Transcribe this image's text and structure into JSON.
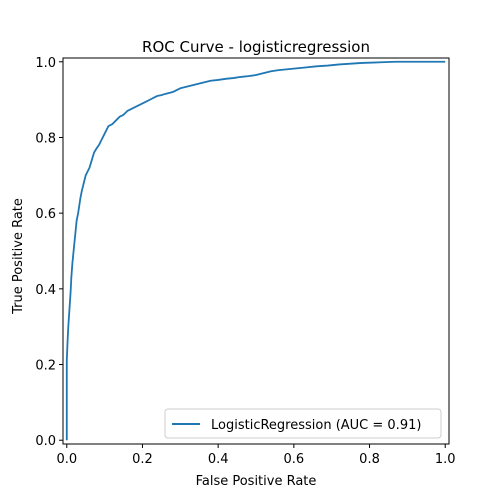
{
  "chart_data": {
    "type": "line",
    "title": "ROC Curve - logisticregression",
    "xlabel": "False Positive Rate",
    "ylabel": "True Positive Rate",
    "xlim": [
      -0.01,
      1.01
    ],
    "ylim": [
      -0.01,
      1.01
    ],
    "xticks": [
      0.0,
      0.2,
      0.4,
      0.6,
      0.8,
      1.0
    ],
    "xtick_labels": [
      "0.0",
      "0.2",
      "0.4",
      "0.6",
      "0.8",
      "1.0"
    ],
    "yticks": [
      0.0,
      0.2,
      0.4,
      0.6,
      0.8,
      1.0
    ],
    "ytick_labels": [
      "0.0",
      "0.2",
      "0.4",
      "0.6",
      "0.8",
      "1.0"
    ],
    "grid": false,
    "legend_position": "bottom-right",
    "series": [
      {
        "name": "LogisticRegression (AUC = 0.91)",
        "color": "#1f77b4",
        "x": [
          0.0,
          0.0,
          0.002,
          0.004,
          0.006,
          0.008,
          0.01,
          0.012,
          0.015,
          0.018,
          0.02,
          0.023,
          0.026,
          0.03,
          0.033,
          0.036,
          0.04,
          0.045,
          0.05,
          0.055,
          0.06,
          0.066,
          0.072,
          0.078,
          0.085,
          0.09,
          0.1,
          0.11,
          0.12,
          0.13,
          0.14,
          0.15,
          0.16,
          0.17,
          0.18,
          0.19,
          0.2,
          0.21,
          0.22,
          0.23,
          0.24,
          0.25,
          0.26,
          0.28,
          0.3,
          0.32,
          0.34,
          0.36,
          0.38,
          0.4,
          0.42,
          0.44,
          0.46,
          0.48,
          0.5,
          0.52,
          0.54,
          0.56,
          0.58,
          0.6,
          0.63,
          0.66,
          0.69,
          0.72,
          0.75,
          0.78,
          0.81,
          0.84,
          0.87,
          0.9,
          0.95,
          1.0
        ],
        "y": [
          0.0,
          0.21,
          0.26,
          0.3,
          0.33,
          0.36,
          0.39,
          0.43,
          0.47,
          0.5,
          0.52,
          0.55,
          0.58,
          0.6,
          0.62,
          0.64,
          0.66,
          0.68,
          0.7,
          0.71,
          0.72,
          0.74,
          0.76,
          0.77,
          0.78,
          0.79,
          0.81,
          0.83,
          0.835,
          0.845,
          0.855,
          0.86,
          0.87,
          0.875,
          0.88,
          0.885,
          0.89,
          0.895,
          0.9,
          0.905,
          0.91,
          0.912,
          0.915,
          0.92,
          0.93,
          0.935,
          0.94,
          0.945,
          0.95,
          0.952,
          0.955,
          0.957,
          0.96,
          0.962,
          0.965,
          0.97,
          0.975,
          0.978,
          0.98,
          0.982,
          0.985,
          0.988,
          0.99,
          0.993,
          0.995,
          0.997,
          0.998,
          0.999,
          1.0,
          1.0,
          1.0,
          1.0
        ]
      }
    ]
  }
}
